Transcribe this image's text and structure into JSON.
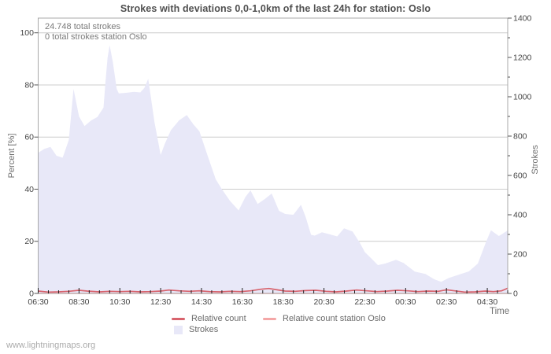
{
  "title": "Strokes with deviations 0,0-1,0km of the last 24h for station: Oslo",
  "annotations": {
    "total": "24.748 total strokes",
    "station": "0 total strokes station Oslo"
  },
  "axes": {
    "left_title": "Percent  [%]",
    "right_title": "Strokes",
    "x_title": "Time"
  },
  "watermark": "www.lightningmaps.org",
  "colors": {
    "area": "#e8e8f8",
    "line": "#d8636d",
    "station_line": "#f4a7a7",
    "grid": "#cccccc",
    "border": "#a8a8a8",
    "tick": "#222222",
    "axis_tick": "#555555"
  },
  "legend": [
    {
      "label": "Relative count",
      "color": "#d8636d",
      "swatch": "line"
    },
    {
      "label": "Relative count station Oslo",
      "color": "#f4a7a7",
      "swatch": "line"
    },
    {
      "label": "Strokes",
      "color": "#e8e8f8",
      "swatch": "square"
    }
  ],
  "chart_data": {
    "type": "area",
    "title": "Strokes with deviations 0,0-1,0km of the last 24h for station: Oslo",
    "xlabel": "Time",
    "ylabel_left": "Percent [%]",
    "ylabel_right": "Strokes",
    "grid": true,
    "legend_position": "bottom",
    "x_axis": {
      "start_label": "06:30",
      "span_hours": 23,
      "tick_interval_hours": 2,
      "minor_tick_minutes": 30,
      "tick_labels": [
        "06:30",
        "08:30",
        "10:30",
        "12:30",
        "14:30",
        "16:30",
        "18:30",
        "20:30",
        "22:30",
        "00:30",
        "02:30",
        "04:30"
      ]
    },
    "y_left": {
      "range": [
        0,
        100
      ],
      "ticks": [
        0,
        20,
        40,
        60,
        80,
        100
      ]
    },
    "y_right": {
      "range": [
        0,
        1400
      ],
      "ticks": [
        0,
        200,
        400,
        600,
        800,
        1000,
        1200,
        1400
      ]
    },
    "series": [
      {
        "name": "Strokes",
        "type": "area",
        "axis": "right",
        "unit": "strokes",
        "points": [
          [
            0,
            715
          ],
          [
            0.3,
            735
          ],
          [
            0.6,
            745
          ],
          [
            0.9,
            700
          ],
          [
            1.2,
            690
          ],
          [
            1.5,
            780
          ],
          [
            1.73,
            1040
          ],
          [
            2.0,
            900
          ],
          [
            2.27,
            851
          ],
          [
            2.6,
            880
          ],
          [
            2.9,
            897
          ],
          [
            3.2,
            945
          ],
          [
            3.3,
            1080
          ],
          [
            3.4,
            1200
          ],
          [
            3.5,
            1262
          ],
          [
            3.65,
            1180
          ],
          [
            3.85,
            1040
          ],
          [
            3.95,
            1017
          ],
          [
            4.3,
            1020
          ],
          [
            4.7,
            1025
          ],
          [
            5.0,
            1022
          ],
          [
            5.2,
            1045
          ],
          [
            5.39,
            1091
          ],
          [
            5.7,
            870
          ],
          [
            6.0,
            704
          ],
          [
            6.2,
            760
          ],
          [
            6.5,
            830
          ],
          [
            6.9,
            880
          ],
          [
            7.28,
            907
          ],
          [
            7.6,
            860
          ],
          [
            7.9,
            824
          ],
          [
            8.3,
            700
          ],
          [
            8.7,
            580
          ],
          [
            9.0,
            530
          ],
          [
            9.4,
            470
          ],
          [
            9.82,
            422
          ],
          [
            10.15,
            490
          ],
          [
            10.4,
            524
          ],
          [
            10.75,
            455
          ],
          [
            11.1,
            480
          ],
          [
            11.44,
            508
          ],
          [
            11.8,
            420
          ],
          [
            12.1,
            404
          ],
          [
            12.5,
            400
          ],
          [
            12.87,
            451
          ],
          [
            13.1,
            390
          ],
          [
            13.37,
            298
          ],
          [
            13.55,
            294
          ],
          [
            13.9,
            311
          ],
          [
            14.3,
            300
          ],
          [
            14.65,
            290
          ],
          [
            14.98,
            331
          ],
          [
            15.4,
            315
          ],
          [
            15.76,
            257
          ],
          [
            16.0,
            210
          ],
          [
            16.3,
            180
          ],
          [
            16.64,
            144
          ],
          [
            17.0,
            152
          ],
          [
            17.53,
            171
          ],
          [
            17.9,
            155
          ],
          [
            18.45,
            111
          ],
          [
            18.97,
            99
          ],
          [
            19.4,
            72
          ],
          [
            19.74,
            59
          ],
          [
            20.1,
            78
          ],
          [
            20.5,
            92
          ],
          [
            21.1,
            112
          ],
          [
            21.54,
            152
          ],
          [
            21.93,
            259
          ],
          [
            22.18,
            321
          ],
          [
            22.57,
            292
          ],
          [
            23,
            320
          ]
        ]
      },
      {
        "name": "Relative count",
        "type": "line",
        "axis": "left",
        "unit": "percent",
        "points": [
          [
            0,
            0.9
          ],
          [
            0.5,
            0.5
          ],
          [
            1,
            0.6
          ],
          [
            1.5,
            0.8
          ],
          [
            2,
            1.2
          ],
          [
            2.4,
            0.9
          ],
          [
            3,
            0.6
          ],
          [
            3.5,
            0.8
          ],
          [
            4,
            0.7
          ],
          [
            4.5,
            0.8
          ],
          [
            5,
            0.6
          ],
          [
            5.5,
            0.7
          ],
          [
            6,
            0.9
          ],
          [
            6.4,
            1.3
          ],
          [
            6.9,
            1.0
          ],
          [
            7.4,
            0.8
          ],
          [
            7.9,
            1.0
          ],
          [
            8.4,
            0.7
          ],
          [
            8.9,
            0.6
          ],
          [
            9.4,
            0.8
          ],
          [
            9.9,
            0.7
          ],
          [
            10.4,
            1.0
          ],
          [
            10.9,
            1.6
          ],
          [
            11.3,
            1.9
          ],
          [
            11.7,
            1.4
          ],
          [
            12.1,
            0.9
          ],
          [
            12.6,
            0.8
          ],
          [
            13.1,
            1.1
          ],
          [
            13.6,
            1.2
          ],
          [
            14.1,
            0.8
          ],
          [
            14.6,
            0.6
          ],
          [
            15.1,
            0.9
          ],
          [
            15.6,
            1.3
          ],
          [
            16.1,
            1.0
          ],
          [
            16.6,
            0.7
          ],
          [
            17.1,
            0.9
          ],
          [
            17.6,
            1.2
          ],
          [
            18.1,
            1.0
          ],
          [
            18.6,
            0.7
          ],
          [
            19.1,
            0.9
          ],
          [
            19.6,
            0.8
          ],
          [
            20.0,
            1.4
          ],
          [
            20.4,
            1.0
          ],
          [
            20.9,
            0.5
          ],
          [
            21.4,
            0.6
          ],
          [
            21.9,
            0.9
          ],
          [
            22.3,
            0.7
          ],
          [
            22.7,
            1.0
          ],
          [
            23,
            2.0
          ]
        ]
      },
      {
        "name": "Relative count station Oslo",
        "type": "line",
        "axis": "left",
        "unit": "percent",
        "points": [
          [
            0,
            0
          ],
          [
            23,
            0
          ]
        ]
      }
    ],
    "annotations": [
      "24.748 total strokes",
      "0 total strokes station Oslo"
    ]
  }
}
